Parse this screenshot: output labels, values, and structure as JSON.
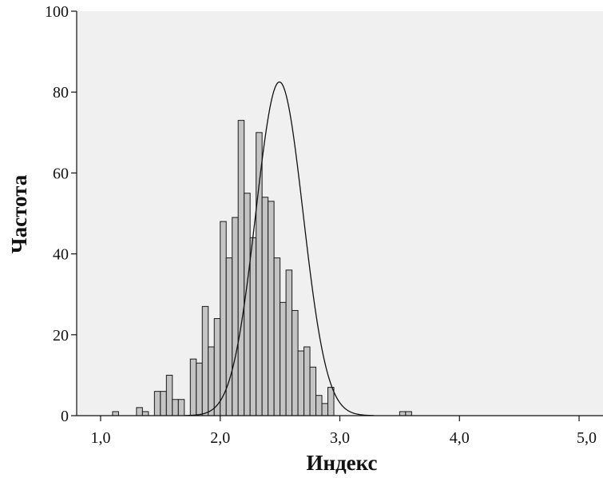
{
  "chart_data": {
    "type": "bar",
    "title": "",
    "xlabel": "Индекс",
    "ylabel": "Частота",
    "xlim": [
      0.8,
      5.2
    ],
    "ylim": [
      0,
      100
    ],
    "bin_width": 0.05,
    "x_ticks": [
      {
        "value": 1.0,
        "label": "1,0"
      },
      {
        "value": 2.0,
        "label": "2,0"
      },
      {
        "value": 3.0,
        "label": "3,0"
      },
      {
        "value": 4.0,
        "label": "4,0"
      },
      {
        "value": 5.0,
        "label": "5,0"
      }
    ],
    "y_ticks": [
      {
        "value": 0,
        "label": "0"
      },
      {
        "value": 20,
        "label": "20"
      },
      {
        "value": 40,
        "label": "40"
      },
      {
        "value": 60,
        "label": "60"
      },
      {
        "value": 80,
        "label": "80"
      },
      {
        "value": 100,
        "label": "100"
      }
    ],
    "bins": [
      {
        "start": 1.1,
        "value": 1
      },
      {
        "start": 1.3,
        "value": 2
      },
      {
        "start": 1.35,
        "value": 1
      },
      {
        "start": 1.45,
        "value": 6
      },
      {
        "start": 1.5,
        "value": 6
      },
      {
        "start": 1.55,
        "value": 10
      },
      {
        "start": 1.6,
        "value": 4
      },
      {
        "start": 1.65,
        "value": 4
      },
      {
        "start": 1.75,
        "value": 14
      },
      {
        "start": 1.8,
        "value": 13
      },
      {
        "start": 1.85,
        "value": 27
      },
      {
        "start": 1.9,
        "value": 17
      },
      {
        "start": 1.95,
        "value": 24
      },
      {
        "start": 2.0,
        "value": 48
      },
      {
        "start": 2.05,
        "value": 39
      },
      {
        "start": 2.1,
        "value": 49
      },
      {
        "start": 2.15,
        "value": 73
      },
      {
        "start": 2.2,
        "value": 55
      },
      {
        "start": 2.25,
        "value": 44
      },
      {
        "start": 2.3,
        "value": 70
      },
      {
        "start": 2.35,
        "value": 54
      },
      {
        "start": 2.4,
        "value": 53
      },
      {
        "start": 2.45,
        "value": 39
      },
      {
        "start": 2.5,
        "value": 28
      },
      {
        "start": 2.55,
        "value": 36
      },
      {
        "start": 2.6,
        "value": 26
      },
      {
        "start": 2.65,
        "value": 16
      },
      {
        "start": 2.7,
        "value": 17
      },
      {
        "start": 2.75,
        "value": 12
      },
      {
        "start": 2.8,
        "value": 5
      },
      {
        "start": 2.85,
        "value": 3
      },
      {
        "start": 2.9,
        "value": 7
      },
      {
        "start": 3.5,
        "value": 1
      },
      {
        "start": 3.55,
        "value": 1
      }
    ],
    "normal_curve": {
      "mean": 2.495,
      "sd": 0.198,
      "peak": 82.5
    },
    "grid": false,
    "legend": "none"
  },
  "colors": {
    "plot_background": "#f0f0f0",
    "page_background": "#ffffff",
    "bar_fill": "#c4c4c4",
    "bar_stroke": "#1a1a1a",
    "curve": "#111111",
    "axis": "#111111"
  }
}
